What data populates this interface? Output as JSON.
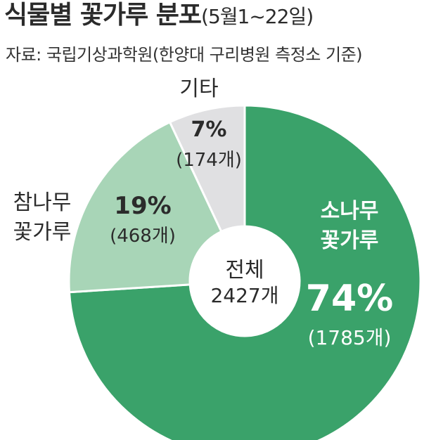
{
  "header": {
    "title": "식물별 꽃가루 분포",
    "title_suffix": "(5월1~22일)",
    "source": "자료: 국립기상과학원(한양대 구리병원 측정소 기준)"
  },
  "chart_data": {
    "type": "pie",
    "variant": "donut",
    "center_label": [
      "전체",
      "2427개"
    ],
    "slices": [
      {
        "label": [
          "소나무",
          "꽃가루"
        ],
        "percent": 74,
        "percent_label": "74%",
        "count_label": "(1785개)",
        "count": 1785,
        "color": "#3aa26a",
        "label_color": "#ffffff",
        "label_side": "inside"
      },
      {
        "label": [
          "참나무",
          "꽃가루"
        ],
        "percent": 19,
        "percent_label": "19%",
        "count_label": "(468개)",
        "count": 468,
        "color": "#a8d5b7",
        "label_color": "#2b2b2b",
        "label_side": "outside"
      },
      {
        "label": [
          "기타"
        ],
        "percent": 7,
        "percent_label": "7%",
        "count_label": "(174개)",
        "count": 174,
        "color": "#e0e0e2",
        "label_color": "#2b2b2b",
        "label_side": "outside"
      }
    ],
    "total": 2427
  }
}
